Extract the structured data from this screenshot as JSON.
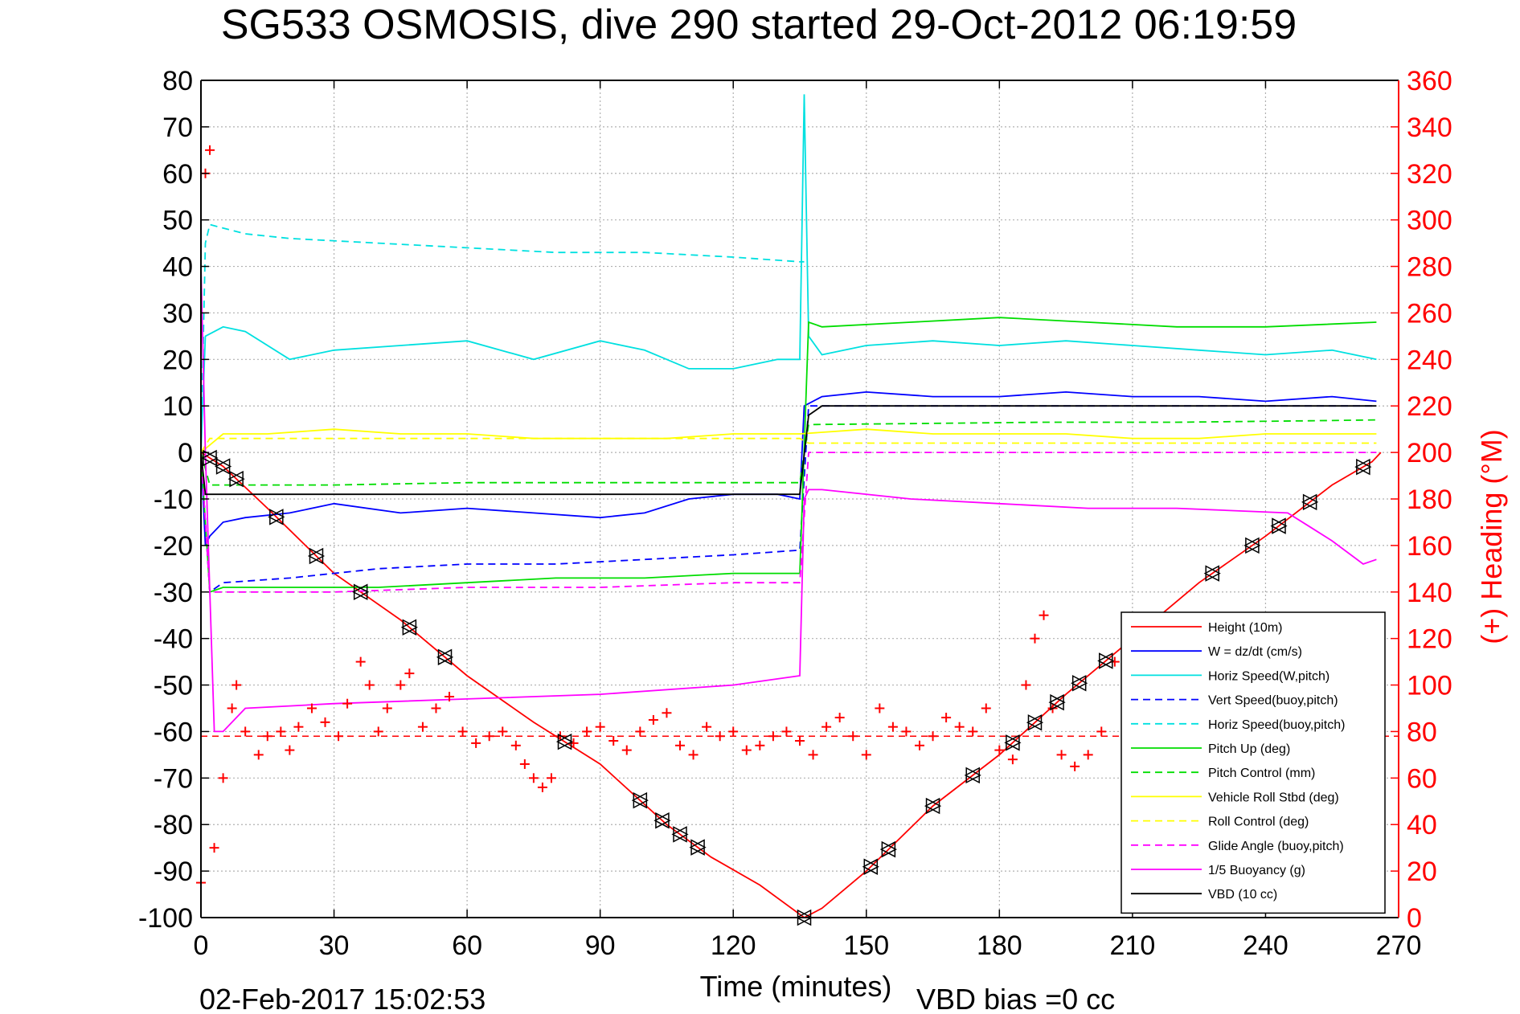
{
  "chart_data": {
    "type": "line",
    "title": "SG533 OSMOSIS, dive 290 started 29-Oct-2012 06:19:59",
    "xlabel": "Time (minutes)",
    "ylabel": "",
    "y2label": "(+) Heading (°M)",
    "xlim": [
      0,
      270
    ],
    "ylim": [
      -100,
      80
    ],
    "y2lim": [
      0,
      360
    ],
    "xticks": [
      "0",
      "30",
      "60",
      "90",
      "120",
      "150",
      "180",
      "210",
      "240",
      "270"
    ],
    "yticks": [
      "80",
      "70",
      "60",
      "50",
      "40",
      "30",
      "20",
      "10",
      "0",
      "-10",
      "-20",
      "-30",
      "-40",
      "-50",
      "-60",
      "-70",
      "-80",
      "-90",
      "-100"
    ],
    "y2ticks": [
      "360",
      "340",
      "320",
      "300",
      "280",
      "260",
      "240",
      "220",
      "200",
      "180",
      "160",
      "140",
      "120",
      "100",
      "80",
      "60",
      "40",
      "20",
      "0"
    ],
    "grid": true,
    "legend_position": "bottom-right",
    "footer_date": "02-Feb-2017 15:02:53",
    "footer_note": "VBD bias =0 cc",
    "series": [
      {
        "name": "Height (10m)",
        "color": "#ff0000",
        "style": "solid",
        "x": [
          0,
          5,
          15,
          30,
          45,
          60,
          75,
          90,
          105,
          115,
          126,
          136,
          140,
          150,
          165,
          180,
          195,
          210,
          225,
          240,
          255,
          264,
          266
        ],
        "y": [
          0,
          -3,
          -12,
          -26,
          -36,
          -48,
          -58,
          -67,
          -80,
          -87,
          -93,
          -100,
          -98,
          -90,
          -76,
          -65,
          -52,
          -40,
          -28,
          -18,
          -7,
          -2,
          0
        ]
      },
      {
        "name": "W = dz/dt (cm/s)",
        "color": "#0000ff",
        "style": "solid",
        "x": [
          0,
          1,
          2,
          5,
          10,
          20,
          30,
          45,
          60,
          75,
          90,
          100,
          110,
          120,
          130,
          135,
          136,
          140,
          150,
          165,
          180,
          195,
          210,
          225,
          240,
          255,
          265
        ],
        "y": [
          0,
          -20,
          -18,
          -15,
          -14,
          -13,
          -11,
          -13,
          -12,
          -13,
          -14,
          -13,
          -10,
          -9,
          -9,
          -10,
          10,
          12,
          13,
          12,
          12,
          13,
          12,
          12,
          11,
          12,
          11
        ]
      },
      {
        "name": "Horiz Speed(W,pitch)",
        "color": "#00e0e0",
        "style": "solid",
        "x": [
          0,
          1,
          5,
          10,
          20,
          30,
          45,
          60,
          75,
          90,
          100,
          110,
          120,
          130,
          135,
          136,
          137,
          140,
          150,
          165,
          180,
          195,
          210,
          225,
          240,
          255,
          265
        ],
        "y": [
          0,
          25,
          27,
          26,
          20,
          22,
          23,
          24,
          20,
          24,
          22,
          18,
          18,
          20,
          20,
          77,
          25,
          21,
          23,
          24,
          23,
          24,
          23,
          22,
          21,
          22,
          20
        ]
      },
      {
        "name": "Vert Speed(buoy,pitch)",
        "color": "#0000ff",
        "style": "dashed",
        "x": [
          0,
          2,
          5,
          20,
          40,
          60,
          80,
          100,
          120,
          135,
          137,
          150,
          180,
          210,
          240,
          265
        ],
        "y": [
          0,
          -30,
          -28,
          -27,
          -25,
          -24,
          -24,
          -23,
          -22,
          -21,
          10,
          10,
          10,
          10,
          10,
          10
        ]
      },
      {
        "name": "Horiz Speed(buoy,pitch)",
        "color": "#00e0e0",
        "style": "dashed",
        "x": [
          0,
          1,
          2,
          10,
          20,
          40,
          60,
          80,
          100,
          120,
          135,
          136
        ],
        "y": [
          0,
          45,
          49,
          47,
          46,
          45,
          44,
          43,
          43,
          42,
          41,
          41
        ]
      },
      {
        "name": "Pitch Up (deg)",
        "color": "#00dd00",
        "style": "solid",
        "x": [
          0,
          2,
          5,
          20,
          40,
          60,
          80,
          100,
          120,
          135,
          137,
          140,
          160,
          180,
          200,
          220,
          240,
          265
        ],
        "y": [
          0,
          -30,
          -29,
          -29,
          -29,
          -28,
          -27,
          -27,
          -26,
          -26,
          28,
          27,
          28,
          29,
          28,
          27,
          27,
          28
        ]
      },
      {
        "name": "Pitch Control (mm)",
        "color": "#00dd00",
        "style": "dashed",
        "x": [
          0,
          2,
          30,
          60,
          90,
          120,
          135,
          137,
          160,
          190,
          220,
          250,
          265
        ],
        "y": [
          0,
          -7,
          -7,
          -6.5,
          -6.5,
          -6.5,
          -6.5,
          6,
          6.2,
          6.5,
          6.5,
          6.8,
          7
        ]
      },
      {
        "name": "Vehicle Roll Stbd (deg)",
        "color": "#ffff00",
        "style": "solid",
        "x": [
          0,
          5,
          15,
          30,
          45,
          60,
          75,
          90,
          105,
          120,
          135,
          150,
          165,
          180,
          195,
          210,
          225,
          240,
          255,
          265
        ],
        "y": [
          0,
          4,
          4,
          5,
          4,
          4,
          3,
          3,
          3,
          4,
          4,
          5,
          4,
          4,
          4,
          3,
          3,
          4,
          4,
          4
        ]
      },
      {
        "name": "Roll Control (deg)",
        "color": "#ffff00",
        "style": "dashed",
        "x": [
          0,
          2,
          30,
          60,
          90,
          120,
          135,
          137,
          165,
          195,
          225,
          255,
          265
        ],
        "y": [
          0,
          3,
          3,
          3,
          3,
          3,
          3,
          2,
          2,
          2,
          2,
          2,
          2
        ]
      },
      {
        "name": "Glide Angle (buoy,pitch)",
        "color": "#ff00ff",
        "style": "dashed",
        "x": [
          0,
          2,
          10,
          30,
          60,
          90,
          120,
          135,
          137,
          150,
          180,
          210,
          240,
          265
        ],
        "y": [
          0,
          -30,
          -30,
          -30,
          -29,
          -29,
          -28,
          -28,
          0,
          0,
          0,
          0,
          0,
          0
        ]
      },
      {
        "name": "1/5 Buoyancy (g)",
        "color": "#ff00ff",
        "style": "solid",
        "x": [
          0,
          1,
          3,
          5,
          10,
          30,
          60,
          90,
          120,
          135,
          136,
          137,
          140,
          160,
          180,
          200,
          220,
          245,
          250,
          255,
          262,
          265
        ],
        "y": [
          40,
          0,
          -60,
          -60,
          -55,
          -54,
          -53,
          -52,
          -50,
          -48,
          -10,
          -8,
          -8,
          -10,
          -11,
          -12,
          -12,
          -13,
          -16,
          -19,
          -24,
          -23
        ]
      },
      {
        "name": "VBD (10 cc)",
        "color": "#000000",
        "style": "solid",
        "x": [
          0,
          1,
          2,
          30,
          60,
          90,
          120,
          135,
          137,
          140,
          170,
          200,
          230,
          265
        ],
        "y": [
          0,
          -9,
          -9,
          -9,
          -9,
          -9,
          -9,
          -9,
          8,
          10,
          10,
          10,
          10,
          10
        ]
      }
    ],
    "heading": {
      "color": "#ff0000",
      "marker": "+",
      "axis": "right",
      "mean_deg": 78,
      "x": [
        0,
        1,
        2,
        3,
        5,
        7,
        8,
        10,
        13,
        15,
        18,
        20,
        22,
        25,
        28,
        31,
        33,
        36,
        38,
        40,
        42,
        45,
        47,
        50,
        53,
        56,
        59,
        62,
        65,
        68,
        71,
        73,
        75,
        77,
        79,
        81,
        84,
        87,
        90,
        93,
        96,
        99,
        102,
        105,
        108,
        111,
        114,
        117,
        120,
        123,
        126,
        129,
        132,
        135,
        138,
        141,
        144,
        147,
        150,
        153,
        156,
        159,
        162,
        165,
        168,
        171,
        174,
        177,
        180,
        183,
        186,
        188,
        190,
        192,
        194,
        197,
        200,
        203,
        206,
        209,
        212
      ],
      "y": [
        15,
        320,
        330,
        30,
        60,
        90,
        100,
        80,
        70,
        78,
        80,
        72,
        82,
        90,
        84,
        78,
        92,
        110,
        100,
        80,
        90,
        100,
        105,
        82,
        90,
        95,
        80,
        75,
        78,
        80,
        74,
        66,
        60,
        56,
        60,
        78,
        75,
        80,
        82,
        76,
        72,
        80,
        85,
        88,
        74,
        70,
        82,
        78,
        80,
        72,
        74,
        78,
        80,
        76,
        70,
        82,
        86,
        78,
        70,
        90,
        82,
        80,
        74,
        78,
        86,
        82,
        80,
        90,
        72,
        68,
        100,
        120,
        130,
        90,
        70,
        65,
        70,
        80,
        110,
        100,
        100
      ]
    },
    "marker_points": {
      "symbol": "triangle",
      "x": [
        2,
        5,
        8,
        17,
        26,
        36,
        47,
        55,
        82,
        99,
        104,
        108,
        112,
        136,
        151,
        155,
        165,
        174,
        183,
        188,
        193,
        198,
        204,
        210,
        228,
        237,
        243,
        250,
        262
      ]
    }
  }
}
